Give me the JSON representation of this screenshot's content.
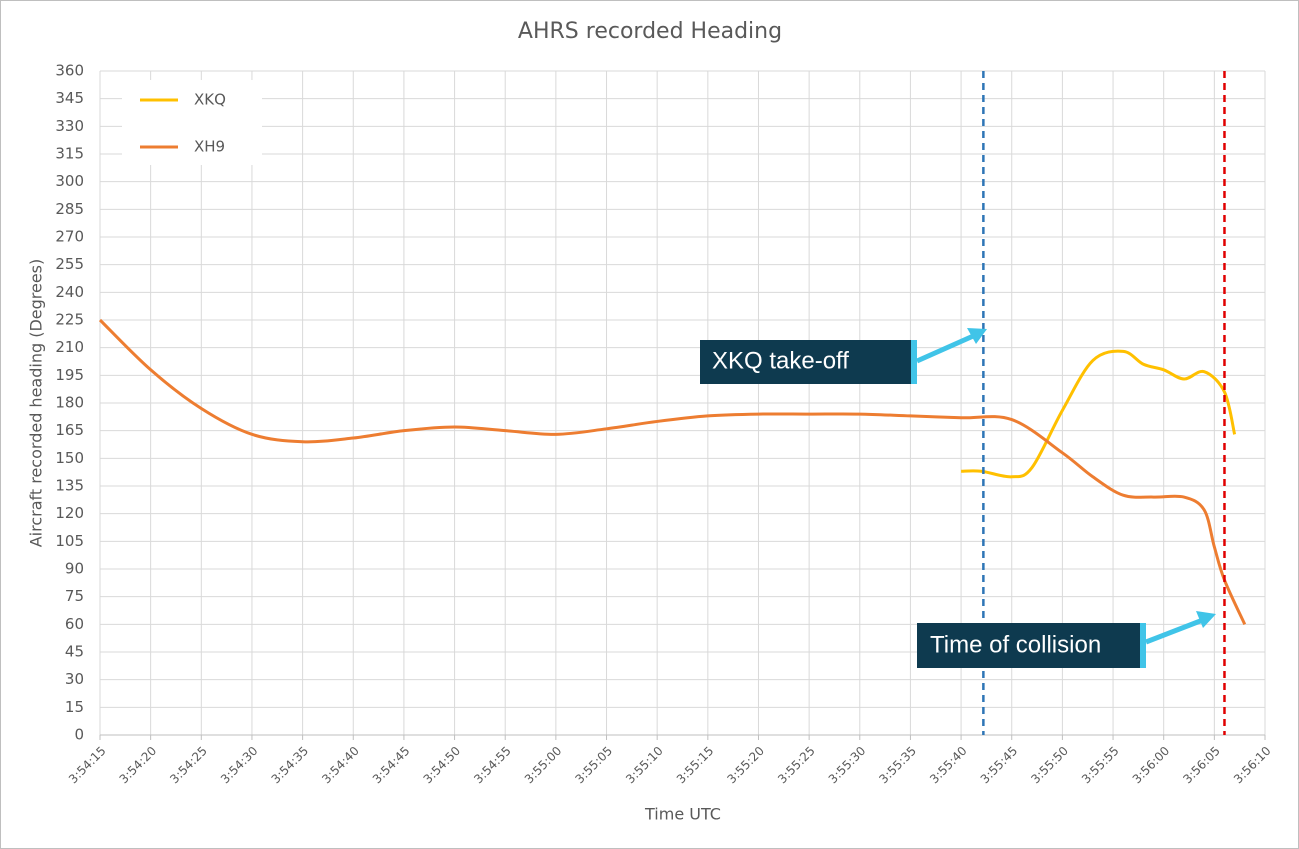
{
  "chart_data": {
    "type": "line",
    "title": "AHRS recorded Heading",
    "xlabel": "Time UTC",
    "ylabel": "Aircraft recorded heading (Degrees)",
    "xlim": [
      14055,
      14170
    ],
    "xticks": [
      {
        "value": 14055,
        "label": "3:54:15"
      },
      {
        "value": 14060,
        "label": "3:54:20"
      },
      {
        "value": 14065,
        "label": "3:54:25"
      },
      {
        "value": 14070,
        "label": "3:54:30"
      },
      {
        "value": 14075,
        "label": "3:54:35"
      },
      {
        "value": 14080,
        "label": "3:54:40"
      },
      {
        "value": 14085,
        "label": "3:54:45"
      },
      {
        "value": 14090,
        "label": "3:54:50"
      },
      {
        "value": 14095,
        "label": "3:54:55"
      },
      {
        "value": 14100,
        "label": "3:55:00"
      },
      {
        "value": 14105,
        "label": "3:55:05"
      },
      {
        "value": 14110,
        "label": "3:55:10"
      },
      {
        "value": 14115,
        "label": "3:55:15"
      },
      {
        "value": 14120,
        "label": "3:55:20"
      },
      {
        "value": 14125,
        "label": "3:55:25"
      },
      {
        "value": 14130,
        "label": "3:55:30"
      },
      {
        "value": 14135,
        "label": "3:55:35"
      },
      {
        "value": 14140,
        "label": "3:55:40"
      },
      {
        "value": 14145,
        "label": "3:55:45"
      },
      {
        "value": 14150,
        "label": "3:55:50"
      },
      {
        "value": 14155,
        "label": "3:55:55"
      },
      {
        "value": 14160,
        "label": "3:56:00"
      },
      {
        "value": 14165,
        "label": "3:56:05"
      },
      {
        "value": 14170,
        "label": "3:56:10"
      }
    ],
    "ylim": [
      0,
      360
    ],
    "yticks": [
      0,
      15,
      30,
      45,
      60,
      75,
      90,
      105,
      120,
      135,
      150,
      165,
      180,
      195,
      210,
      225,
      240,
      255,
      270,
      285,
      300,
      315,
      330,
      345,
      360
    ],
    "grid": true,
    "smooth": true,
    "legend": "upper-left",
    "series": [
      {
        "name": "XKQ",
        "color": "#ffc000",
        "x": [
          14140,
          14142,
          14145,
          14147,
          14150,
          14153,
          14156,
          14158,
          14160,
          14162,
          14164,
          14166,
          14167
        ],
        "values": [
          143,
          143,
          140,
          145,
          176,
          203,
          208,
          201,
          198,
          193,
          197,
          186,
          163
        ]
      },
      {
        "name": "XH9",
        "color": "#ed7d31",
        "x": [
          14055,
          14060,
          14065,
          14070,
          14075,
          14080,
          14085,
          14090,
          14095,
          14100,
          14105,
          14110,
          14115,
          14120,
          14125,
          14130,
          14135,
          14140,
          14145,
          14150,
          14153,
          14156,
          14159,
          14162,
          14164,
          14165,
          14166,
          14168
        ],
        "values": [
          225,
          198,
          177,
          163,
          159,
          161,
          165,
          167,
          165,
          163,
          166,
          170,
          173,
          174,
          174,
          174,
          173,
          172,
          171,
          153,
          140,
          130,
          129,
          129,
          122,
          102,
          84,
          60
        ]
      }
    ],
    "vlines": [
      {
        "x": 14142.2,
        "color": "#2e75b6"
      },
      {
        "x": 14166,
        "color": "#e00000"
      }
    ],
    "annotations": [
      "XKQ take-off",
      "Time of collision"
    ]
  }
}
